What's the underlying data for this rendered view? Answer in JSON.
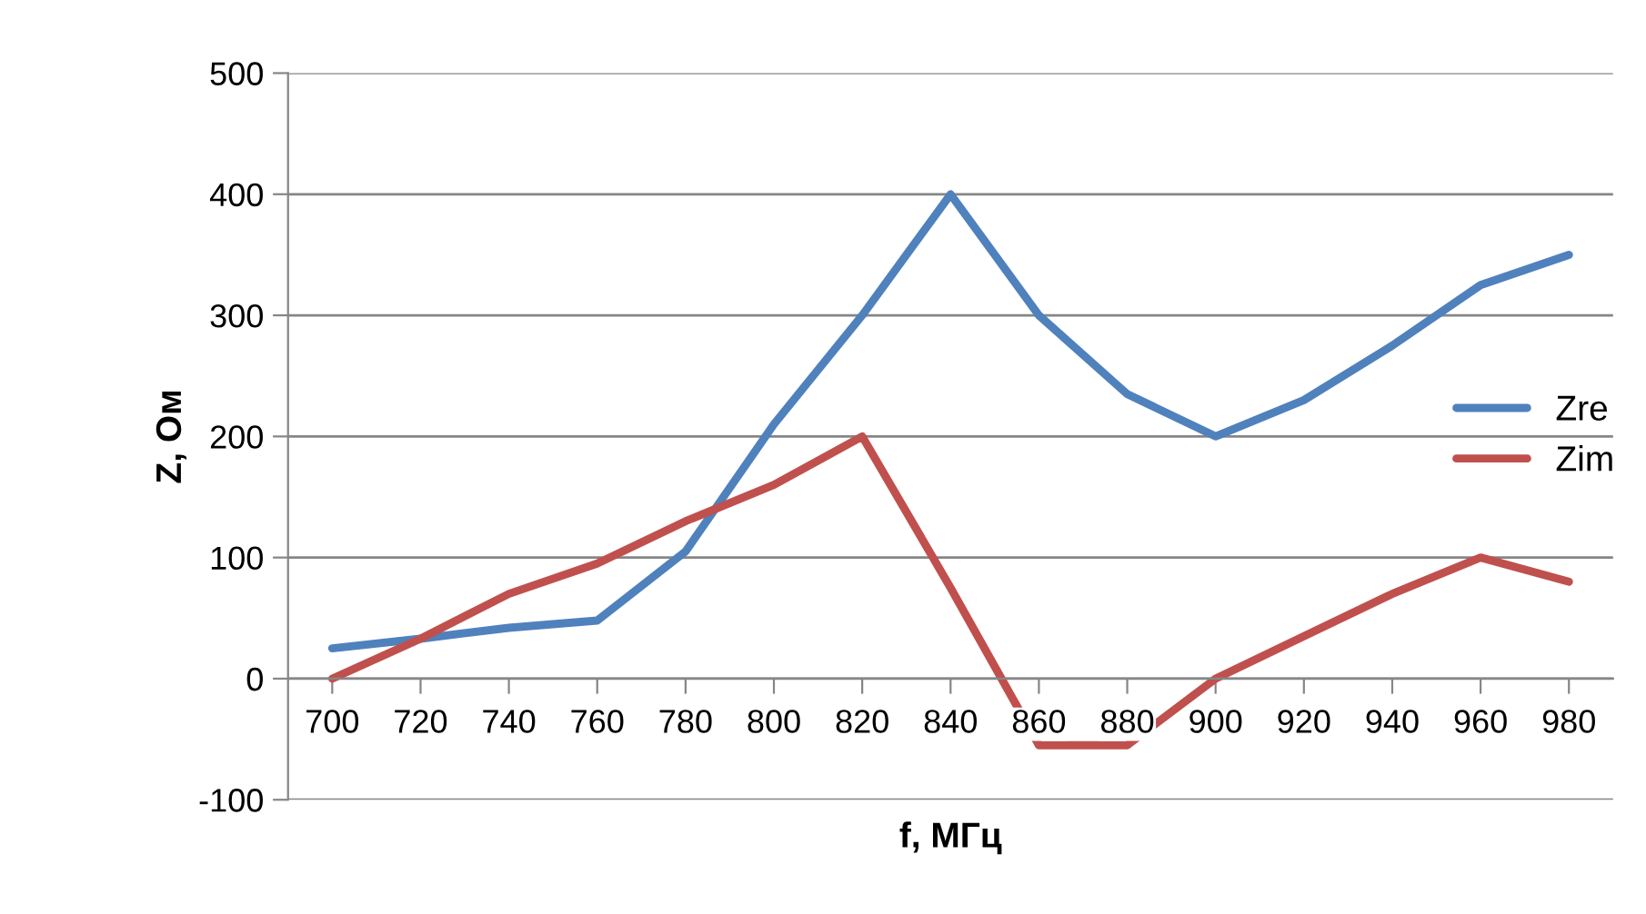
{
  "chart_data": {
    "type": "line",
    "xlabel": "f, МГц",
    "ylabel": "Z, Ом",
    "categories": [
      "700",
      "720",
      "740",
      "760",
      "780",
      "800",
      "820",
      "840",
      "860",
      "880",
      "900",
      "920",
      "940",
      "960",
      "980"
    ],
    "series": [
      {
        "name": "Zre",
        "color": "#4f81bd",
        "values": [
          25,
          33,
          42,
          48,
          105,
          210,
          300,
          400,
          300,
          235,
          200,
          230,
          275,
          325,
          350
        ]
      },
      {
        "name": "Zim",
        "color": "#c0504d",
        "values": [
          0,
          33,
          70,
          95,
          130,
          160,
          200,
          75,
          -55,
          -55,
          0,
          35,
          70,
          100,
          80
        ]
      }
    ],
    "ylim": [
      -100,
      500
    ],
    "yticks": [
      -100,
      0,
      100,
      200,
      300,
      400,
      500
    ],
    "grid": "y",
    "legend": "right",
    "marker": "none",
    "line_style": "solid"
  }
}
